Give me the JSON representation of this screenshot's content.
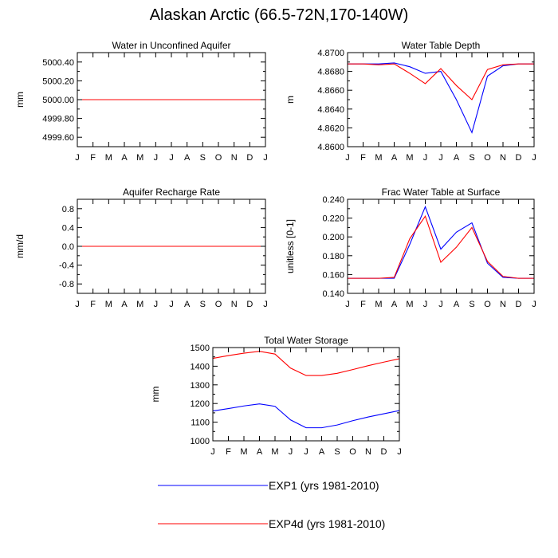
{
  "figure": {
    "title": "Alaskan Arctic (66.5-72N,170-140W)"
  },
  "chart_data": [
    {
      "id": "p1",
      "type": "line",
      "title": "Water in Unconfined Aquifer",
      "xlabel": "",
      "ylabel": "mm",
      "categories": [
        "J",
        "F",
        "M",
        "A",
        "M",
        "J",
        "J",
        "A",
        "S",
        "O",
        "N",
        "D",
        "J"
      ],
      "ylim": [
        4999.5,
        5000.5
      ],
      "yticks": [
        4999.6,
        4999.8,
        5000.0,
        5000.2,
        5000.4
      ],
      "ytick_labels": [
        "4999.60",
        "4999.80",
        "5000.00",
        "5000.20",
        "5000.40"
      ],
      "series": [
        {
          "key": "EXP1",
          "color": "#0000ff",
          "values": [
            5000,
            5000,
            5000,
            5000,
            5000,
            5000,
            5000,
            5000,
            5000,
            5000,
            5000,
            5000,
            5000
          ]
        },
        {
          "key": "EXP4d",
          "color": "#ff0000",
          "values": [
            5000,
            5000,
            5000,
            5000,
            5000,
            5000,
            5000,
            5000,
            5000,
            5000,
            5000,
            5000,
            5000
          ]
        }
      ]
    },
    {
      "id": "p2",
      "type": "line",
      "title": "Water Table Depth",
      "xlabel": "",
      "ylabel": "m",
      "categories": [
        "J",
        "F",
        "M",
        "A",
        "M",
        "J",
        "J",
        "A",
        "S",
        "O",
        "N",
        "D",
        "J"
      ],
      "ylim": [
        4.86,
        4.87
      ],
      "yticks": [
        4.86,
        4.862,
        4.864,
        4.866,
        4.868,
        4.87
      ],
      "ytick_labels": [
        "4.8600",
        "4.8620",
        "4.8640",
        "4.8660",
        "4.8680",
        "4.8700"
      ],
      "series": [
        {
          "key": "EXP1",
          "color": "#0000ff",
          "values": [
            4.8688,
            4.8688,
            4.8688,
            4.8689,
            4.8685,
            4.8678,
            4.868,
            4.865,
            4.8615,
            4.8675,
            4.8686,
            4.8688,
            4.8688
          ]
        },
        {
          "key": "EXP4d",
          "color": "#ff0000",
          "values": [
            4.8688,
            4.8688,
            4.8687,
            4.8688,
            4.8678,
            4.8667,
            4.8683,
            4.8665,
            4.865,
            4.8682,
            4.8687,
            4.8688,
            4.8688
          ]
        }
      ]
    },
    {
      "id": "p3",
      "type": "line",
      "title": "Aquifer Recharge Rate",
      "xlabel": "",
      "ylabel": "mm/d",
      "categories": [
        "J",
        "F",
        "M",
        "A",
        "M",
        "J",
        "J",
        "A",
        "S",
        "O",
        "N",
        "D",
        "J"
      ],
      "ylim": [
        -1.0,
        1.0
      ],
      "yticks": [
        -0.8,
        -0.4,
        0.0,
        0.4,
        0.8
      ],
      "ytick_labels": [
        "-0.8",
        "-0.4",
        "0.0",
        "0.4",
        "0.8"
      ],
      "series": [
        {
          "key": "EXP1",
          "color": "#0000ff",
          "values": [
            0,
            0,
            0,
            0,
            0,
            0,
            0,
            0,
            0,
            0,
            0,
            0,
            0
          ]
        },
        {
          "key": "EXP4d",
          "color": "#ff0000",
          "values": [
            0,
            0,
            0,
            0,
            0,
            0,
            0,
            0,
            0,
            0,
            0,
            0,
            0
          ]
        }
      ]
    },
    {
      "id": "p4",
      "type": "line",
      "title": "Frac Water Table at Surface",
      "xlabel": "",
      "ylabel": "unitless [0-1]",
      "categories": [
        "J",
        "F",
        "M",
        "A",
        "M",
        "J",
        "J",
        "A",
        "S",
        "O",
        "N",
        "D",
        "J"
      ],
      "ylim": [
        0.14,
        0.24
      ],
      "yticks": [
        0.14,
        0.16,
        0.18,
        0.2,
        0.22,
        0.24
      ],
      "ytick_labels": [
        "0.140",
        "0.160",
        "0.180",
        "0.200",
        "0.220",
        "0.240"
      ],
      "series": [
        {
          "key": "EXP1",
          "color": "#0000ff",
          "values": [
            0.156,
            0.156,
            0.156,
            0.156,
            0.192,
            0.232,
            0.187,
            0.205,
            0.215,
            0.172,
            0.157,
            0.156,
            0.156
          ]
        },
        {
          "key": "EXP4d",
          "color": "#ff0000",
          "values": [
            0.156,
            0.156,
            0.156,
            0.157,
            0.198,
            0.222,
            0.173,
            0.189,
            0.21,
            0.174,
            0.158,
            0.156,
            0.156
          ]
        }
      ]
    },
    {
      "id": "p5",
      "type": "line",
      "title": "Total Water Storage",
      "xlabel": "",
      "ylabel": "mm",
      "categories": [
        "J",
        "F",
        "M",
        "A",
        "M",
        "J",
        "J",
        "A",
        "S",
        "O",
        "N",
        "D",
        "J"
      ],
      "ylim": [
        1000,
        1500
      ],
      "yticks": [
        1000,
        1100,
        1200,
        1300,
        1400,
        1500
      ],
      "ytick_labels": [
        "1000",
        "1100",
        "1200",
        "1300",
        "1400",
        "1500"
      ],
      "series": [
        {
          "key": "EXP1",
          "color": "#0000ff",
          "values": [
            1160,
            1173,
            1187,
            1198,
            1185,
            1112,
            1070,
            1070,
            1085,
            1108,
            1128,
            1145,
            1162
          ]
        },
        {
          "key": "EXP4d",
          "color": "#ff0000",
          "values": [
            1442,
            1457,
            1470,
            1480,
            1465,
            1390,
            1350,
            1350,
            1362,
            1382,
            1403,
            1422,
            1440
          ]
        }
      ]
    }
  ],
  "legend": [
    {
      "key": "EXP1",
      "label": "EXP1 (yrs 1981-2010)",
      "color": "#0000ff"
    },
    {
      "key": "EXP4d",
      "label": "EXP4d (yrs 1981-2010)",
      "color": "#ff0000"
    }
  ]
}
